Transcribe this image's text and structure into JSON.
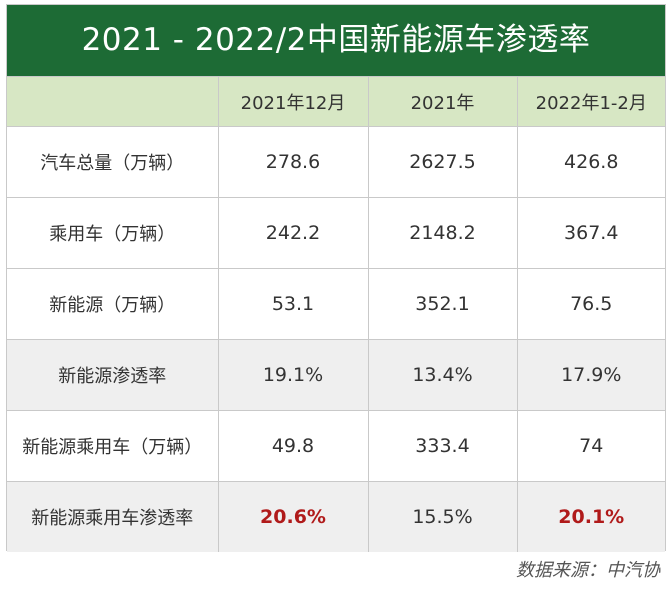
{
  "chart_data": {
    "type": "table",
    "title": "2021 - 2022/2中国新能源车渗透率",
    "columns": [
      "",
      "2021年12月",
      "2021年",
      "2022年1-2月"
    ],
    "rows": [
      {
        "label": "汽车总量（万辆）",
        "values": [
          "278.6",
          "2627.5",
          "426.8"
        ],
        "highlight": [
          false,
          false,
          false
        ],
        "shaded": false
      },
      {
        "label": "乘用车（万辆）",
        "values": [
          "242.2",
          "2148.2",
          "367.4"
        ],
        "highlight": [
          false,
          false,
          false
        ],
        "shaded": false
      },
      {
        "label": "新能源（万辆）",
        "values": [
          "53.1",
          "352.1",
          "76.5"
        ],
        "highlight": [
          false,
          false,
          false
        ],
        "shaded": false
      },
      {
        "label": "新能源渗透率",
        "values": [
          "19.1%",
          "13.4%",
          "17.9%"
        ],
        "highlight": [
          false,
          false,
          false
        ],
        "shaded": true
      },
      {
        "label": "新能源乘用车（万辆）",
        "values": [
          "49.8",
          "333.4",
          "74"
        ],
        "highlight": [
          false,
          false,
          false
        ],
        "shaded": false
      },
      {
        "label": "新能源乘用车渗透率",
        "values": [
          "20.6%",
          "15.5%",
          "20.1%"
        ],
        "highlight": [
          true,
          false,
          true
        ],
        "shaded": true
      }
    ],
    "source": "数据来源：中汽协",
    "colors": {
      "title_bg": "#1d6b35",
      "header_bg": "#d7e7c4",
      "shaded_row_bg": "#efefef",
      "highlight_text": "#b01a1a"
    }
  }
}
